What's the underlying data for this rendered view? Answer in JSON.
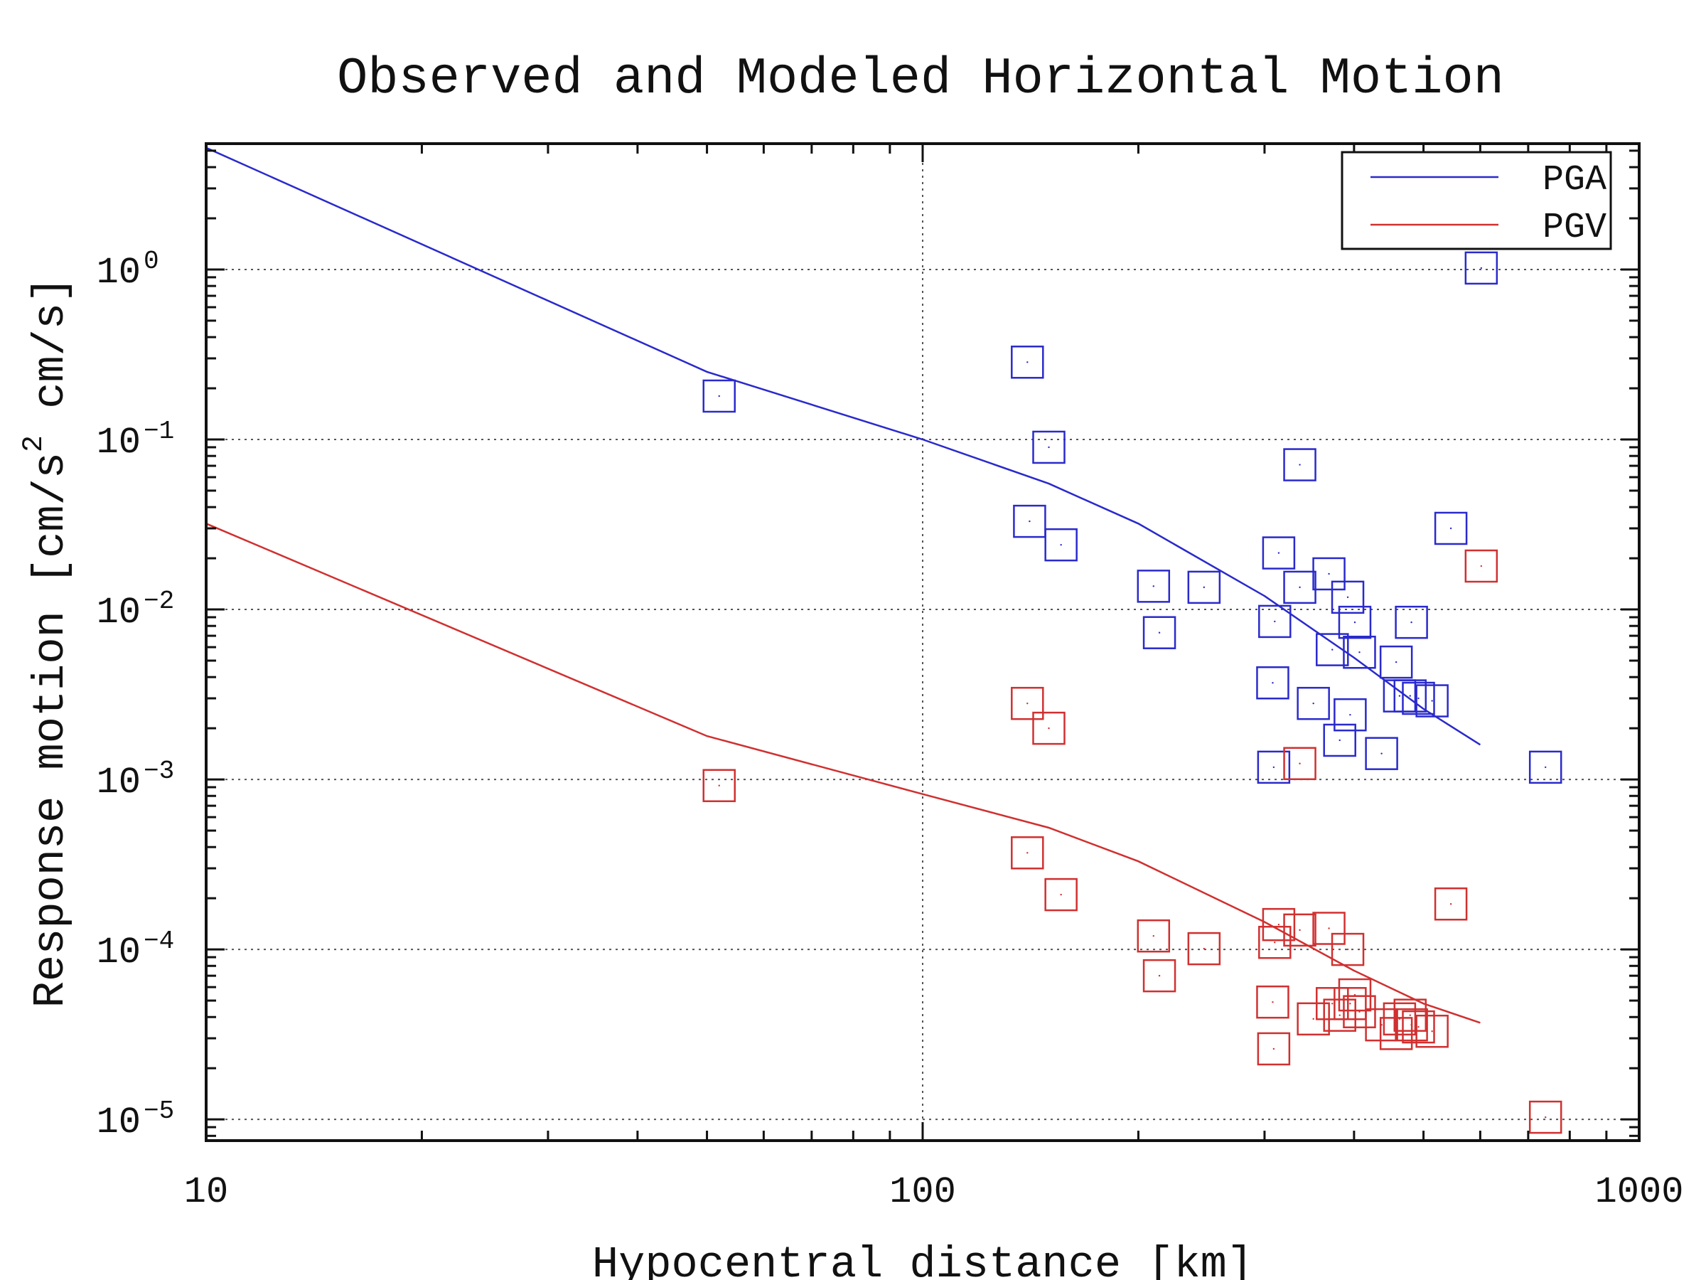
{
  "chart_data": {
    "type": "scatter",
    "title": "Observed and Modeled Horizontal Motion",
    "xlabel": "Hypocentral distance [km]",
    "ylabel_parts": [
      "Response motion [cm/s",
      "2",
      " cm/s]"
    ],
    "xscale": "log",
    "yscale": "log",
    "xlim": [
      10,
      1000
    ],
    "ylim": [
      7.5e-06,
      5.5
    ],
    "xticks": [
      {
        "value": 10,
        "label": "10"
      },
      {
        "value": 100,
        "label": "100"
      },
      {
        "value": 1000,
        "label": "1000"
      }
    ],
    "yticks": [
      {
        "value": 1,
        "base": "10",
        "exp": "0"
      },
      {
        "value": 0.1,
        "base": "10",
        "exp": "−1"
      },
      {
        "value": 0.01,
        "base": "10",
        "exp": "−2"
      },
      {
        "value": 0.001,
        "base": "10",
        "exp": "−3"
      },
      {
        "value": 0.0001,
        "base": "10",
        "exp": "−4"
      },
      {
        "value": 1e-05,
        "base": "10",
        "exp": "−5"
      }
    ],
    "grid": true,
    "legend_position": "top-right",
    "series": [
      {
        "name": "PGA",
        "color": "#2a2acc",
        "model_line": [
          [
            10,
            5.2
          ],
          [
            50,
            0.25
          ],
          [
            100,
            0.1
          ],
          [
            150,
            0.055
          ],
          [
            200,
            0.032
          ],
          [
            300,
            0.012
          ],
          [
            400,
            0.0052
          ],
          [
            500,
            0.0026
          ],
          [
            600,
            0.0016
          ]
        ],
        "observed": [
          [
            52,
            0.18
          ],
          [
            140,
            0.285
          ],
          [
            150,
            0.09
          ],
          [
            141,
            0.033
          ],
          [
            156,
            0.024
          ],
          [
            210,
            0.0137
          ],
          [
            214,
            0.0073
          ],
          [
            247,
            0.0135
          ],
          [
            314,
            0.0215
          ],
          [
            310,
            0.0085
          ],
          [
            308,
            0.0037
          ],
          [
            309,
            0.00118
          ],
          [
            336,
            0.071
          ],
          [
            336,
            0.0135
          ],
          [
            369,
            0.0162
          ],
          [
            351,
            0.0028
          ],
          [
            373,
            0.0058
          ],
          [
            382,
            0.0017
          ],
          [
            392,
            0.0118
          ],
          [
            401,
            0.0084
          ],
          [
            395,
            0.0024
          ],
          [
            407,
            0.0056
          ],
          [
            437,
            0.00142
          ],
          [
            458,
            0.0049
          ],
          [
            463,
            0.0031
          ],
          [
            481,
            0.0084
          ],
          [
            479,
            0.0031
          ],
          [
            492,
            0.003
          ],
          [
            514,
            0.0029
          ],
          [
            546,
            0.03
          ],
          [
            602,
            1.02
          ],
          [
            740,
            0.00118
          ]
        ]
      },
      {
        "name": "PGV",
        "color": "#d03030",
        "model_line": [
          [
            10,
            0.032
          ],
          [
            50,
            0.0018
          ],
          [
            100,
            0.00082
          ],
          [
            150,
            0.00052
          ],
          [
            200,
            0.00033
          ],
          [
            300,
            0.000145
          ],
          [
            400,
            7.5e-05
          ],
          [
            500,
            4.8e-05
          ],
          [
            600,
            3.7e-05
          ]
        ],
        "observed": [
          [
            52,
            0.00092
          ],
          [
            140,
            0.0028
          ],
          [
            150,
            0.002
          ],
          [
            140,
            0.00037
          ],
          [
            156,
            0.00021
          ],
          [
            210,
            0.00012
          ],
          [
            214,
            7e-05
          ],
          [
            247,
            0.000101
          ],
          [
            314,
            0.00014
          ],
          [
            310,
            0.00011
          ],
          [
            308,
            4.9e-05
          ],
          [
            309,
            2.6e-05
          ],
          [
            336,
            0.00124
          ],
          [
            336,
            0.00013
          ],
          [
            369,
            0.000133
          ],
          [
            351,
            3.9e-05
          ],
          [
            373,
            4.8e-05
          ],
          [
            382,
            4.1e-05
          ],
          [
            392,
            0.0001
          ],
          [
            401,
            5.4e-05
          ],
          [
            395,
            4.8e-05
          ],
          [
            407,
            4.3e-05
          ],
          [
            437,
            3.6e-05
          ],
          [
            458,
            3.2e-05
          ],
          [
            463,
            3.9e-05
          ],
          [
            481,
            3.6e-05
          ],
          [
            479,
            4.1e-05
          ],
          [
            492,
            3.5e-05
          ],
          [
            514,
            3.3e-05
          ],
          [
            546,
            0.000185
          ],
          [
            602,
            0.018
          ],
          [
            740,
            1.03e-05
          ]
        ]
      }
    ]
  }
}
